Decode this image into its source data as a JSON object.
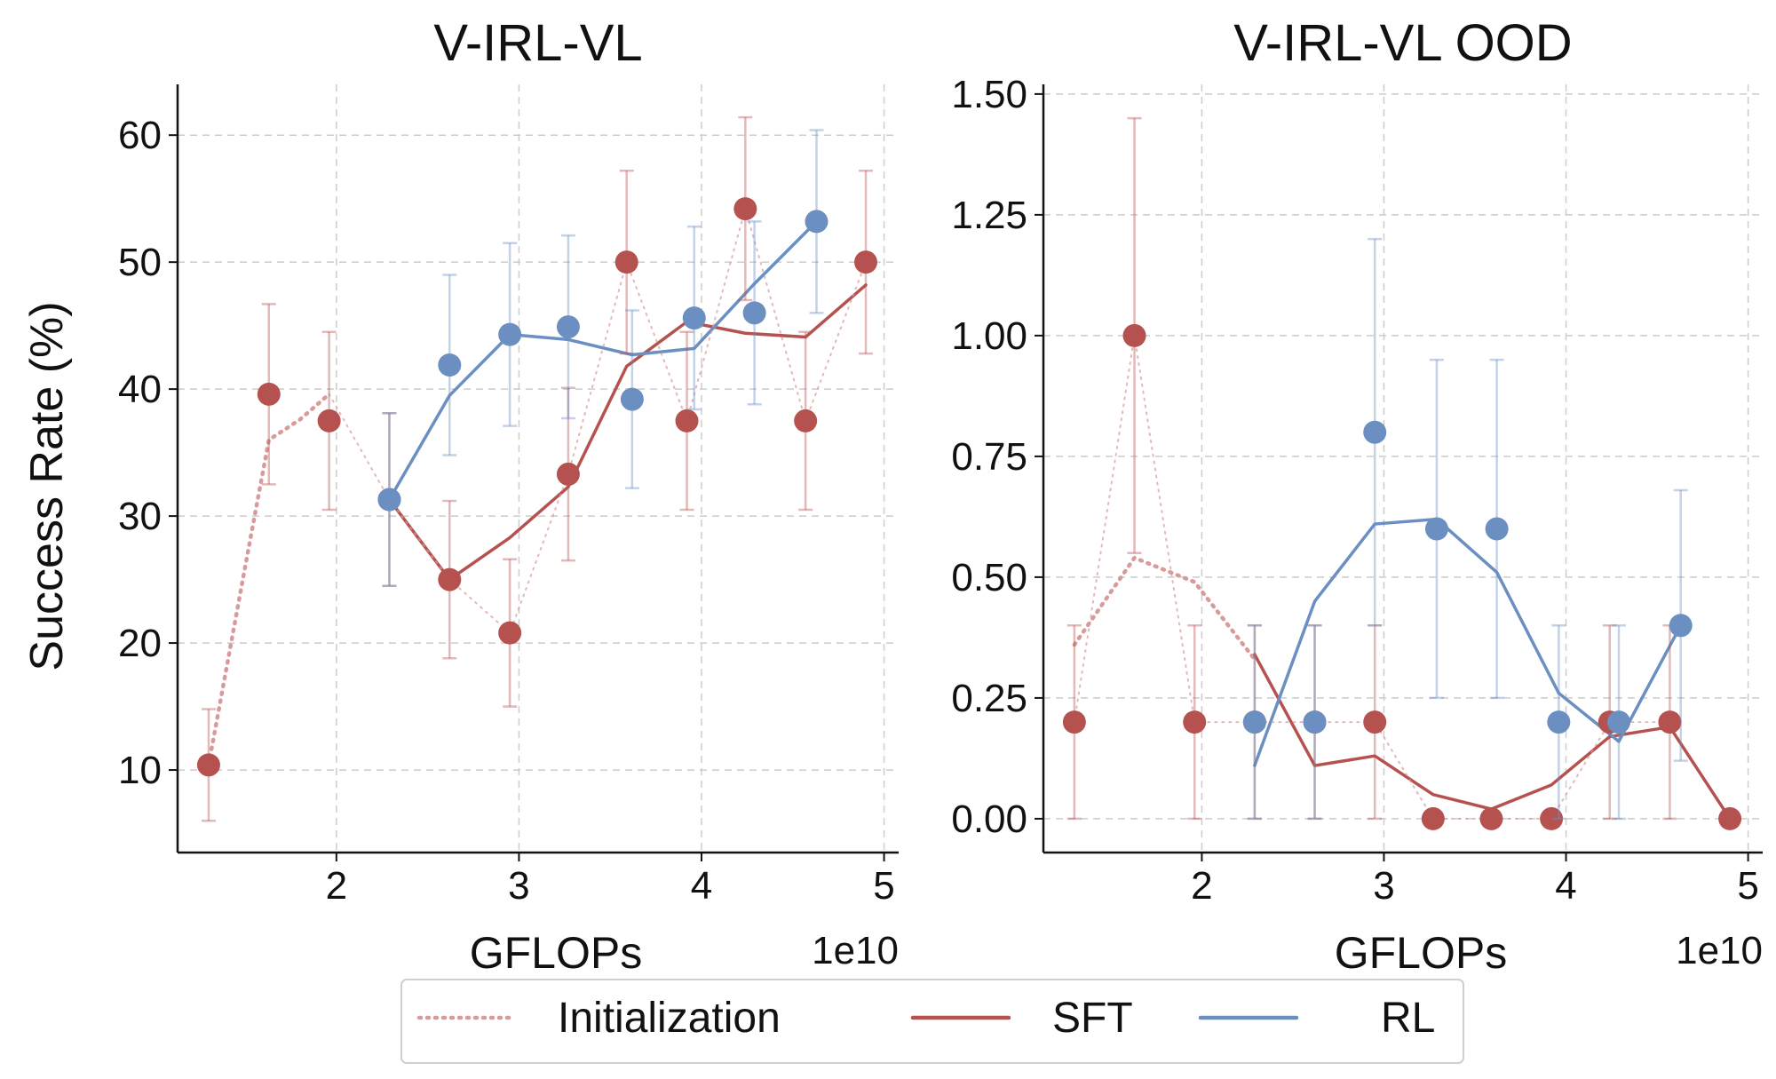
{
  "colors": {
    "sft": "#b5524f",
    "rl": "#6b8fc1",
    "init": "#d89a9a",
    "grid": "#cccccc",
    "axis": "#111111"
  },
  "legend": {
    "placement": "bottom-center",
    "items": [
      {
        "key": "init",
        "label": "Initialization"
      },
      {
        "key": "sft",
        "label": "SFT"
      },
      {
        "key": "rl",
        "label": "RL"
      }
    ]
  },
  "chart_data": [
    {
      "type": "line",
      "title": "V-IRL-VL",
      "xlabel": "GFLOPs",
      "ylabel": "Success Rate (%)",
      "x_offset_label": "1e10",
      "xlim": [
        1.13,
        5.08
      ],
      "ylim": [
        3.5,
        64
      ],
      "xticks": [
        2,
        3,
        4,
        5
      ],
      "yticks": [
        10,
        20,
        30,
        40,
        50,
        60
      ],
      "ytick_labels": [
        "10",
        "20",
        "30",
        "40",
        "50",
        "60"
      ],
      "grid": true,
      "sft_points": {
        "x": [
          1.3,
          1.63,
          1.96,
          2.29,
          2.62,
          2.95,
          3.27,
          3.59,
          3.92,
          4.24,
          4.57,
          4.9
        ],
        "y": [
          10.4,
          39.6,
          37.5,
          31.3,
          25.0,
          20.8,
          33.3,
          50.0,
          37.5,
          54.2,
          37.5,
          50.0
        ],
        "err_low": [
          4.4,
          7.1,
          7.0,
          6.8,
          6.2,
          5.8,
          6.8,
          7.2,
          7.0,
          7.2,
          7.0,
          7.2
        ],
        "err_high": [
          4.4,
          7.1,
          7.0,
          6.8,
          6.2,
          5.8,
          6.8,
          7.2,
          7.0,
          7.2,
          7.0,
          7.2
        ]
      },
      "rl_points": {
        "x": [
          2.29,
          2.62,
          2.95,
          3.27,
          3.62,
          3.96,
          4.29,
          4.63
        ],
        "y": [
          31.3,
          41.9,
          44.3,
          44.9,
          39.2,
          45.6,
          46.0,
          53.2
        ],
        "err_low": [
          6.8,
          7.1,
          7.2,
          7.2,
          7.0,
          7.2,
          7.2,
          7.2
        ],
        "err_high": [
          6.8,
          7.1,
          7.2,
          7.2,
          7.0,
          7.2,
          7.2,
          7.2
        ]
      },
      "series": [
        {
          "name": "Initialization",
          "key": "init",
          "style": "dotted",
          "width": 4.5,
          "x": [
            1.3,
            1.5,
            1.63,
            1.8,
            1.96
          ],
          "y": [
            10.4,
            26,
            36,
            37.6,
            39.6
          ]
        },
        {
          "name": "SFT",
          "key": "sft",
          "style": "solid",
          "width": 3.5,
          "x": [
            2.29,
            2.62,
            2.95,
            3.27,
            3.59,
            3.92,
            4.24,
            4.57,
            4.9
          ],
          "y": [
            31.3,
            25.0,
            28.3,
            32.3,
            41.8,
            45.3,
            44.4,
            44.1,
            48.2
          ]
        },
        {
          "name": "RL",
          "key": "rl",
          "style": "solid",
          "width": 3.5,
          "x": [
            2.29,
            2.62,
            2.95,
            3.27,
            3.62,
            3.96,
            4.29,
            4.63
          ],
          "y": [
            31.3,
            39.5,
            44.3,
            43.9,
            42.7,
            43.2,
            48.3,
            53.2
          ]
        },
        {
          "name": "Initialization",
          "key": "init",
          "style": "thin-dotted",
          "width": 2,
          "x": [
            1.96,
            2.29,
            2.62,
            2.95,
            3.27,
            3.59,
            3.92,
            4.24,
            4.57,
            4.9
          ],
          "y": [
            39.6,
            31.3,
            25.0,
            20.8,
            33.3,
            50.0,
            37.5,
            54.2,
            37.5,
            50.0
          ]
        }
      ]
    },
    {
      "type": "line",
      "title": "V-IRL-VL OOD",
      "xlabel": "GFLOPs",
      "ylabel": "",
      "x_offset_label": "1e10",
      "xlim": [
        1.13,
        5.08
      ],
      "ylim": [
        -0.07,
        1.52
      ],
      "xticks": [
        2,
        3,
        4,
        5
      ],
      "yticks": [
        0,
        0.25,
        0.5,
        0.75,
        1.0,
        1.25,
        1.5
      ],
      "ytick_labels": [
        "0.00",
        "0.25",
        "0.50",
        "0.75",
        "1.00",
        "1.25",
        "1.50"
      ],
      "grid": true,
      "sft_points": {
        "x": [
          1.3,
          1.63,
          1.96,
          2.29,
          2.62,
          2.95,
          3.27,
          3.59,
          3.92,
          4.24,
          4.57,
          4.9
        ],
        "y": [
          0.2,
          1.0,
          0.2,
          0.2,
          0.2,
          0.2,
          0.0,
          0.0,
          0.0,
          0.2,
          0.2,
          0.0
        ],
        "err_low": [
          0.2,
          0.45,
          0.2,
          0.2,
          0.2,
          0.2,
          0.0,
          0.0,
          0.0,
          0.2,
          0.2,
          0.0
        ],
        "err_high": [
          0.2,
          0.45,
          0.2,
          0.2,
          0.2,
          0.2,
          0.0,
          0.0,
          0.0,
          0.2,
          0.2,
          0.0
        ]
      },
      "rl_points": {
        "x": [
          2.29,
          2.62,
          2.95,
          3.29,
          3.62,
          3.96,
          4.29,
          4.63
        ],
        "y": [
          0.2,
          0.2,
          0.8,
          0.6,
          0.6,
          0.2,
          0.2,
          0.4
        ],
        "err_low": [
          0.2,
          0.2,
          0.4,
          0.35,
          0.35,
          0.2,
          0.2,
          0.28
        ],
        "err_high": [
          0.2,
          0.2,
          0.4,
          0.35,
          0.35,
          0.2,
          0.2,
          0.28
        ]
      },
      "series": [
        {
          "name": "Initialization",
          "key": "init",
          "style": "dotted",
          "width": 4.5,
          "x": [
            1.3,
            1.63,
            1.96,
            2.29
          ],
          "y": [
            0.36,
            0.54,
            0.49,
            0.33
          ]
        },
        {
          "name": "SFT",
          "key": "sft",
          "style": "solid",
          "width": 3.5,
          "x": [
            2.29,
            2.62,
            2.95,
            3.27,
            3.59,
            3.92,
            4.24,
            4.57,
            4.9
          ],
          "y": [
            0.34,
            0.11,
            0.13,
            0.05,
            0.02,
            0.07,
            0.17,
            0.19,
            0.0
          ]
        },
        {
          "name": "RL",
          "key": "rl",
          "style": "solid",
          "width": 3.5,
          "x": [
            2.29,
            2.62,
            2.95,
            3.29,
            3.62,
            3.96,
            4.29,
            4.63
          ],
          "y": [
            0.11,
            0.45,
            0.61,
            0.62,
            0.51,
            0.26,
            0.16,
            0.4
          ]
        },
        {
          "name": "Initialization",
          "key": "init",
          "style": "thin-dotted",
          "width": 2,
          "x": [
            1.3,
            1.63,
            1.96,
            2.29,
            2.62,
            2.95,
            3.27,
            3.59,
            3.92,
            4.24,
            4.57
          ],
          "y": [
            0.2,
            1.0,
            0.2,
            0.2,
            0.2,
            0.2,
            0.0,
            0.0,
            0.0,
            0.2,
            0.2
          ]
        }
      ]
    }
  ]
}
